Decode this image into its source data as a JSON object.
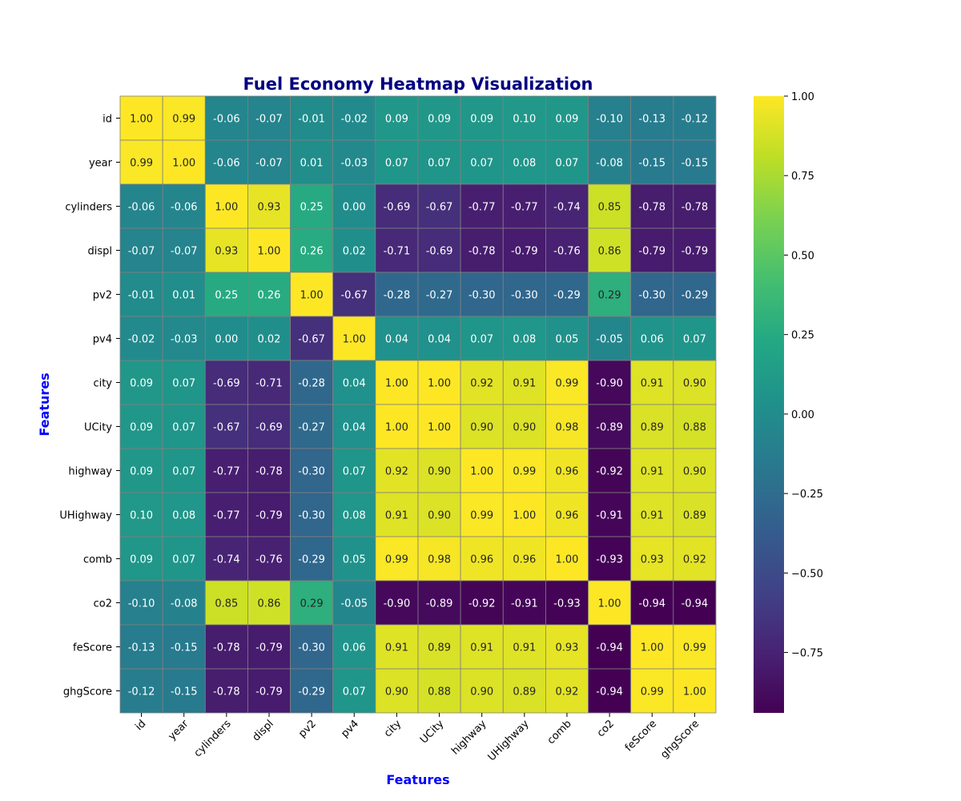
{
  "chart_data": {
    "type": "heatmap",
    "title": "Fuel Economy Heatmap Visualization",
    "xlabel": "Features",
    "ylabel": "Features",
    "labels": [
      "id",
      "year",
      "cylinders",
      "displ",
      "pv2",
      "pv4",
      "city",
      "UCity",
      "highway",
      "UHighway",
      "comb",
      "co2",
      "feScore",
      "ghgScore"
    ],
    "values": [
      [
        1.0,
        0.99,
        -0.06,
        -0.07,
        -0.01,
        -0.02,
        0.09,
        0.09,
        0.09,
        0.1,
        0.09,
        -0.1,
        -0.13,
        -0.12
      ],
      [
        0.99,
        1.0,
        -0.06,
        -0.07,
        0.01,
        -0.03,
        0.07,
        0.07,
        0.07,
        0.08,
        0.07,
        -0.08,
        -0.15,
        -0.15
      ],
      [
        -0.06,
        -0.06,
        1.0,
        0.93,
        0.25,
        -0.0,
        -0.69,
        -0.67,
        -0.77,
        -0.77,
        -0.74,
        0.85,
        -0.78,
        -0.78
      ],
      [
        -0.07,
        -0.07,
        0.93,
        1.0,
        0.26,
        0.02,
        -0.71,
        -0.69,
        -0.78,
        -0.79,
        -0.76,
        0.86,
        -0.79,
        -0.79
      ],
      [
        -0.01,
        0.01,
        0.25,
        0.26,
        1.0,
        -0.67,
        -0.28,
        -0.27,
        -0.3,
        -0.3,
        -0.29,
        0.29,
        -0.3,
        -0.29
      ],
      [
        -0.02,
        -0.03,
        -0.0,
        0.02,
        -0.67,
        1.0,
        0.04,
        0.04,
        0.07,
        0.08,
        0.05,
        -0.05,
        0.06,
        0.07
      ],
      [
        0.09,
        0.07,
        -0.69,
        -0.71,
        -0.28,
        0.04,
        1.0,
        1.0,
        0.92,
        0.91,
        0.99,
        -0.9,
        0.91,
        0.9
      ],
      [
        0.09,
        0.07,
        -0.67,
        -0.69,
        -0.27,
        0.04,
        1.0,
        1.0,
        0.9,
        0.9,
        0.98,
        -0.89,
        0.89,
        0.88
      ],
      [
        0.09,
        0.07,
        -0.77,
        -0.78,
        -0.3,
        0.07,
        0.92,
        0.9,
        1.0,
        0.99,
        0.96,
        -0.92,
        0.91,
        0.9
      ],
      [
        0.1,
        0.08,
        -0.77,
        -0.79,
        -0.3,
        0.08,
        0.91,
        0.9,
        0.99,
        1.0,
        0.96,
        -0.91,
        0.91,
        0.89
      ],
      [
        0.09,
        0.07,
        -0.74,
        -0.76,
        -0.29,
        0.05,
        0.99,
        0.98,
        0.96,
        0.96,
        1.0,
        -0.93,
        0.93,
        0.92
      ],
      [
        -0.1,
        -0.08,
        0.85,
        0.86,
        0.29,
        -0.05,
        -0.9,
        -0.89,
        -0.92,
        -0.91,
        -0.93,
        1.0,
        -0.94,
        -0.94
      ],
      [
        -0.13,
        -0.15,
        -0.78,
        -0.79,
        -0.3,
        0.06,
        0.91,
        0.89,
        0.91,
        0.91,
        0.93,
        -0.94,
        1.0,
        0.99
      ],
      [
        -0.12,
        -0.15,
        -0.78,
        -0.79,
        -0.29,
        0.07,
        0.9,
        0.88,
        0.9,
        0.89,
        0.92,
        -0.94,
        0.99,
        1.0
      ]
    ],
    "colormap": "viridis",
    "vmin": -0.94,
    "vmax": 1.0,
    "annotation_format": "0.00",
    "colorbar_ticks": [
      "1.00",
      "0.75",
      "0.50",
      "0.25",
      "0.00",
      "−0.25",
      "−0.50",
      "−0.75"
    ],
    "colorbar_tick_values": [
      1.0,
      0.75,
      0.5,
      0.25,
      0.0,
      -0.25,
      -0.5,
      -0.75
    ],
    "grid_line_color": "#808080",
    "title_color": "#000080",
    "axis_label_color": "#0000ff"
  }
}
